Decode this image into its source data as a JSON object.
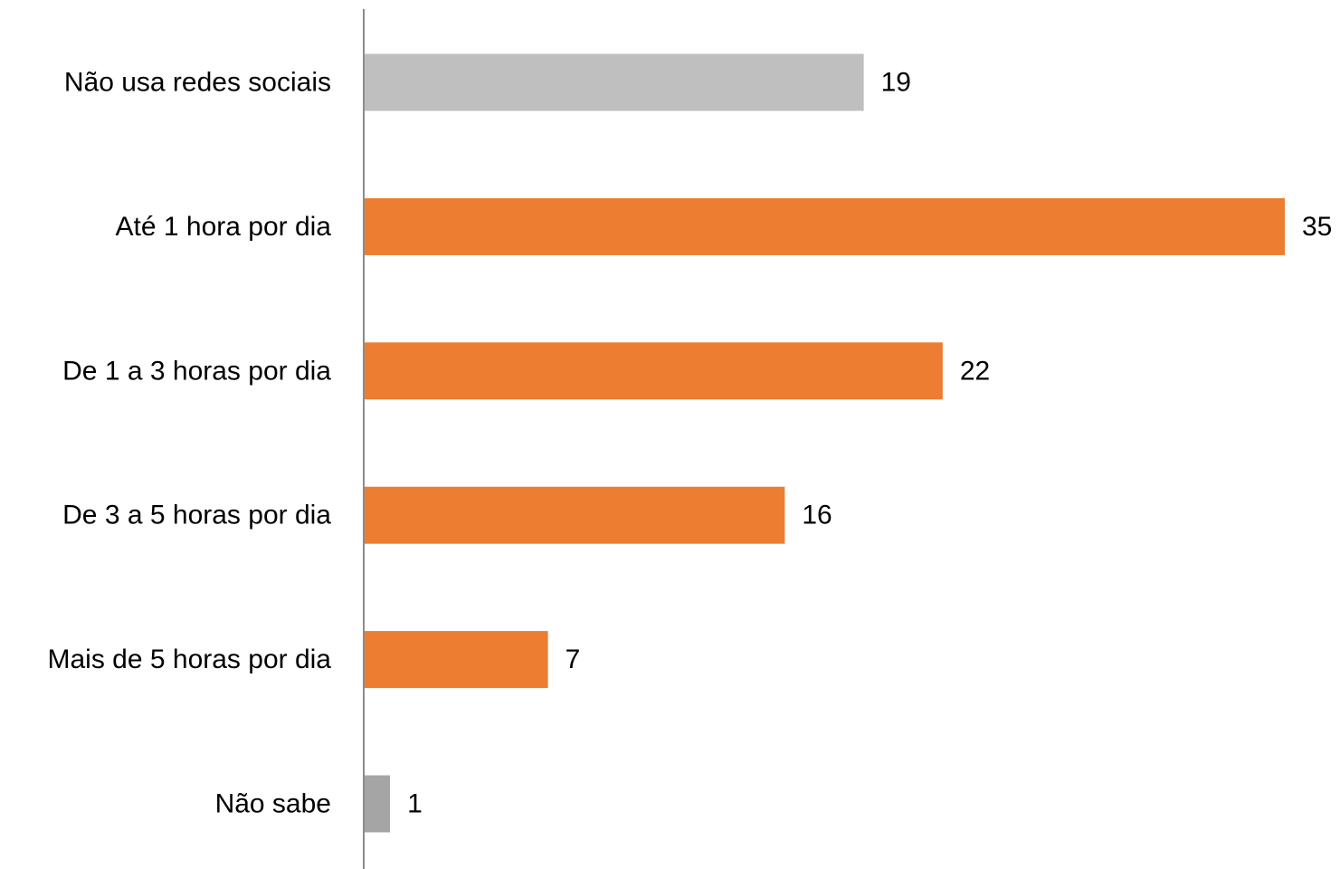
{
  "chart_data": {
    "type": "bar",
    "orientation": "horizontal",
    "categories": [
      "Não usa redes sociais",
      "Até 1 hora por dia",
      "De 1 a 3 horas por dia",
      "De 3 a 5 horas por dia",
      "Mais de 5 horas por dia",
      "Não sabe"
    ],
    "values": [
      19,
      35,
      22,
      16,
      7,
      1
    ],
    "data_labels": [
      "19",
      "35",
      "22",
      "16",
      "7",
      "1"
    ],
    "bar_colors": [
      "#bfbfbf",
      "#ed7d31",
      "#ed7d31",
      "#ed7d31",
      "#ed7d31",
      "#a5a5a5"
    ],
    "axis_color": "#8c8c8c",
    "xlim": [
      0,
      35
    ],
    "grid": false,
    "legend": "none",
    "title": "",
    "xlabel": "",
    "ylabel": ""
  }
}
